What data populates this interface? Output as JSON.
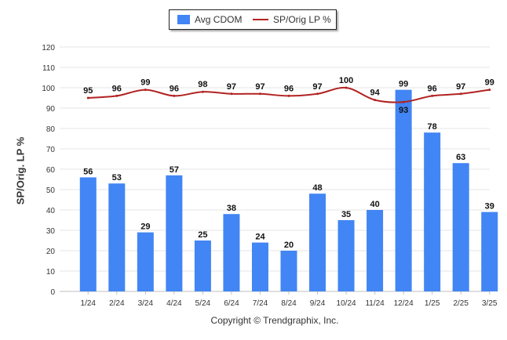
{
  "legend": {
    "bar_label": "Avg CDOM",
    "line_label": "SP/Orig LP %"
  },
  "copyright": "Copyright © Trendgraphix, Inc.",
  "colors": {
    "bar": "#4285f4",
    "line": "#b22222",
    "grid": "#e6e6e6",
    "text": "#333333"
  },
  "chart_data": {
    "type": "bar",
    "categories": [
      "1/24",
      "2/24",
      "3/24",
      "4/24",
      "5/24",
      "6/24",
      "7/24",
      "8/24",
      "9/24",
      "10/24",
      "11/24",
      "12/24",
      "1/25",
      "2/25",
      "3/25"
    ],
    "series": [
      {
        "name": "Avg CDOM",
        "type": "bar",
        "values": [
          56,
          53,
          29,
          57,
          25,
          38,
          24,
          20,
          48,
          35,
          40,
          99,
          78,
          63,
          39
        ]
      },
      {
        "name": "SP/Orig LP %",
        "type": "line",
        "values": [
          95,
          96,
          99,
          96,
          98,
          97,
          97,
          96,
          97,
          100,
          94,
          93,
          96,
          97,
          99
        ]
      }
    ],
    "ylabel": "SP/Orig. LP %",
    "yticks": [
      0,
      10,
      20,
      30,
      40,
      50,
      60,
      70,
      80,
      90,
      100,
      110,
      120
    ],
    "ylim": [
      0,
      120
    ],
    "grid": true,
    "legend_position": "top-center"
  }
}
